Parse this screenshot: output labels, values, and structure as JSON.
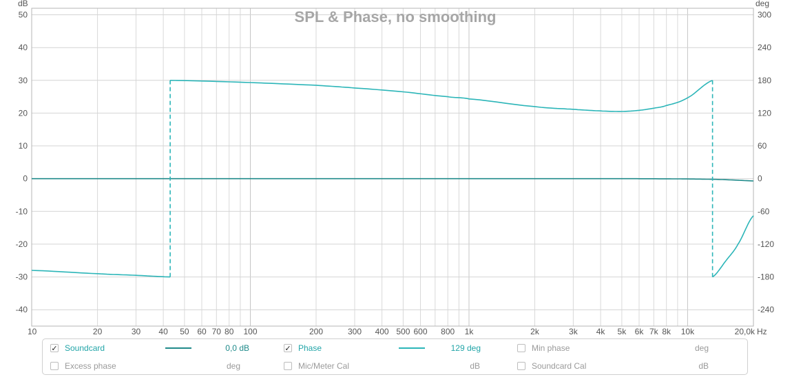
{
  "chart_data": {
    "type": "line",
    "title": "SPL & Phase, no smoothing",
    "left_unit": "dB",
    "right_unit": "deg",
    "x_scale": "log",
    "xlim": [
      10,
      20000
    ],
    "ylim_left": [
      -45,
      52
    ],
    "ylim_right": [
      -270,
      312
    ],
    "x_ticks": [
      {
        "v": 10,
        "label": "10"
      },
      {
        "v": 20,
        "label": "20"
      },
      {
        "v": 30,
        "label": "30"
      },
      {
        "v": 40,
        "label": "40"
      },
      {
        "v": 50,
        "label": "50"
      },
      {
        "v": 60,
        "label": "60"
      },
      {
        "v": 70,
        "label": "70"
      },
      {
        "v": 80,
        "label": "80"
      },
      {
        "v": 100,
        "label": "100"
      },
      {
        "v": 200,
        "label": "200"
      },
      {
        "v": 300,
        "label": "300"
      },
      {
        "v": 400,
        "label": "400"
      },
      {
        "v": 500,
        "label": "500"
      },
      {
        "v": 600,
        "label": "600"
      },
      {
        "v": 800,
        "label": "800"
      },
      {
        "v": 1000,
        "label": "1k"
      },
      {
        "v": 2000,
        "label": "2k"
      },
      {
        "v": 3000,
        "label": "3k"
      },
      {
        "v": 4000,
        "label": "4k"
      },
      {
        "v": 5000,
        "label": "5k"
      },
      {
        "v": 6000,
        "label": "6k"
      },
      {
        "v": 7000,
        "label": "7k"
      },
      {
        "v": 8000,
        "label": "8k"
      },
      {
        "v": 10000,
        "label": "10k"
      },
      {
        "v": 20000,
        "label": "20,0k"
      }
    ],
    "x_unit_label": "Hz",
    "y_ticks_left": [
      "50",
      "40",
      "30",
      "20",
      "10",
      "0",
      "-10",
      "-20",
      "-30",
      "-40"
    ],
    "y_ticks_left_values": [
      50,
      40,
      30,
      20,
      10,
      0,
      -10,
      -20,
      -30,
      -40
    ],
    "y_ticks_right": [
      "300",
      "240",
      "180",
      "120",
      "60",
      "0",
      "-60",
      "-120",
      "-180",
      "-240"
    ],
    "y_ticks_right_values": [
      300,
      240,
      180,
      120,
      60,
      0,
      -60,
      -120,
      -180,
      -240
    ],
    "grid": true,
    "series": [
      {
        "name": "Soundcard",
        "axis": "left",
        "color": "#1f8a8a",
        "x": [
          10,
          50,
          100,
          500,
          1000,
          5000,
          8000,
          10000,
          13000,
          16000,
          20000
        ],
        "y": [
          0,
          0,
          0,
          0,
          0,
          0,
          -0.05,
          -0.1,
          -0.2,
          -0.4,
          -0.7
        ]
      },
      {
        "name": "Phase",
        "axis": "right",
        "color": "#2bb5b8",
        "wrap_jumps": [
          {
            "x": 43,
            "from": -180,
            "to": 180
          },
          {
            "x": 13000,
            "from": 180,
            "to": -180
          }
        ],
        "segments": [
          {
            "x": [
              10,
              20,
              30,
              43
            ],
            "y": [
              -168,
              -174,
              -177,
              -180
            ]
          },
          {
            "x": [
              43,
              100,
              200,
              300,
              500,
              800,
              1000,
              2000,
              3000,
              4000,
              5000,
              6000,
              7000,
              8000,
              10000,
              13000
            ],
            "y": [
              180,
              176,
              171,
              166,
              159,
              150,
              146,
              132,
              127,
              124,
              123,
              125,
              129,
              134,
              148,
              180
            ]
          },
          {
            "x": [
              13000,
              15000,
              17000,
              20000
            ],
            "y": [
              -180,
              -150,
              -120,
              -68
            ]
          }
        ]
      }
    ]
  },
  "legend": {
    "row1": [
      {
        "label": "Soundcard",
        "checked": true,
        "value": "0,0 dB",
        "color": "#1f8a8a"
      },
      {
        "label": "Phase",
        "checked": true,
        "value": "129 deg",
        "color": "#2bb5b8"
      },
      {
        "label": "Min phase",
        "checked": false,
        "unit": "deg"
      }
    ],
    "row2": [
      {
        "label": "Excess phase",
        "checked": false,
        "unit": "deg"
      },
      {
        "label": "Mic/Meter Cal",
        "checked": false,
        "unit": "dB"
      },
      {
        "label": "Soundcard Cal",
        "checked": false,
        "unit": "dB"
      }
    ]
  }
}
